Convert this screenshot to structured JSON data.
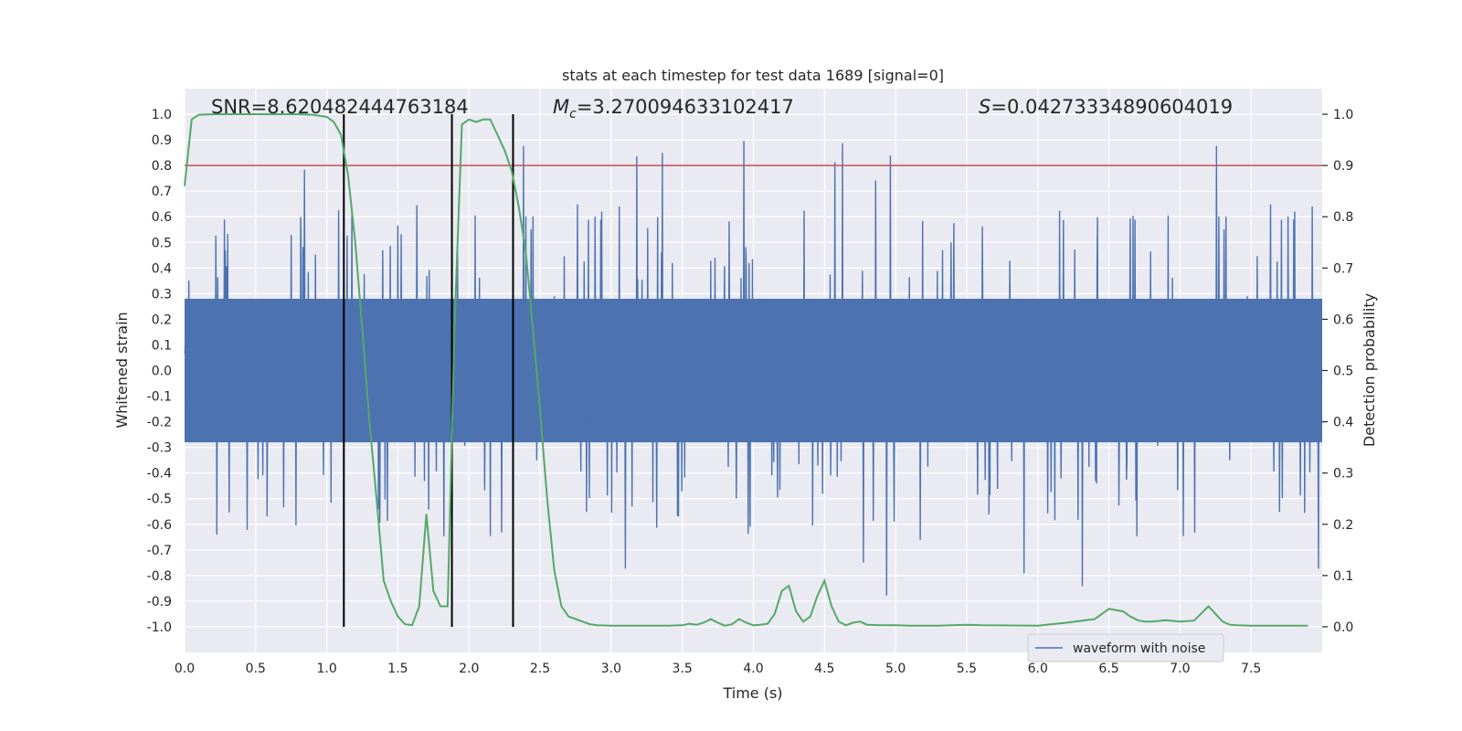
{
  "chart_data": {
    "type": "line",
    "title": "stats at each timestep for test data 1689 [signal=0]",
    "xlabel": "Time (s)",
    "ylabel_left": "Whitened strain",
    "ylabel_right": "Detection probability",
    "xlim": [
      0,
      8
    ],
    "ylim_left": [
      -1.1,
      1.1
    ],
    "ylim_right": [
      -0.05,
      1.05
    ],
    "x_ticks": [
      "0.0",
      "0.5",
      "1.0",
      "1.5",
      "2.0",
      "2.5",
      "3.0",
      "3.5",
      "4.0",
      "4.5",
      "5.0",
      "5.5",
      "6.0",
      "6.5",
      "7.0",
      "7.5"
    ],
    "x_tick_values": [
      0,
      0.5,
      1,
      1.5,
      2,
      2.5,
      3,
      3.5,
      4,
      4.5,
      5,
      5.5,
      6,
      6.5,
      7,
      7.5
    ],
    "y_left_ticks": [
      "1.0",
      "0.9",
      "0.8",
      "0.7",
      "0.6",
      "0.5",
      "0.4",
      "0.3",
      "0.2",
      "0.1",
      "0.0",
      "-0.1",
      "-0.2",
      "-0.3",
      "-0.4",
      "-0.5",
      "-0.6",
      "-0.7",
      "-0.8",
      "-0.9",
      "-1.0"
    ],
    "y_left_tick_values": [
      1.0,
      0.9,
      0.8,
      0.7,
      0.6,
      0.5,
      0.4,
      0.3,
      0.2,
      0.1,
      0.0,
      -0.1,
      -0.2,
      -0.3,
      -0.4,
      -0.5,
      -0.6,
      -0.7,
      -0.8,
      -0.9,
      -1.0
    ],
    "y_right_ticks": [
      "1.0",
      "0.9",
      "0.8",
      "0.7",
      "0.6",
      "0.5",
      "0.4",
      "0.3",
      "0.2",
      "0.1",
      "0.0"
    ],
    "y_right_tick_values": [
      1.0,
      0.9,
      0.8,
      0.7,
      0.6,
      0.5,
      0.4,
      0.3,
      0.2,
      0.1,
      0.0
    ],
    "annotations": {
      "snr": "SNR=8.620482444763184",
      "mc_symbol": "M",
      "mc_sub": "c",
      "mc_value": "=3.270094633102417",
      "s_symbol": "S",
      "s_value": "=0.04273334890604019"
    },
    "threshold": {
      "value": 0.9,
      "axis": "right",
      "color": "#c44e52"
    },
    "vertical_lines": [
      1.12,
      1.88,
      2.31
    ],
    "vertical_lines_ylim_left": [
      -1.0,
      1.0
    ],
    "legend": {
      "label": "waveform with noise",
      "placement": "lower-right"
    },
    "grid": true,
    "colors": {
      "waveform": "#4c72b0",
      "probability": "#55a868",
      "threshold": "#c44e52",
      "vlines": "#000000",
      "axes_bg": "#eaeaf2",
      "grid": "#ffffff"
    },
    "waveform": {
      "name": "waveform with noise",
      "axis": "left",
      "duration": 8.0,
      "core_amplitude": 0.28,
      "max_positive": 0.97,
      "min_negative": -1.0
    },
    "series": [
      {
        "name": "",
        "axis": "right",
        "x": [
          0.0,
          0.05,
          0.1,
          0.2,
          0.4,
          0.6,
          0.8,
          0.9,
          1.0,
          1.05,
          1.1,
          1.15,
          1.2,
          1.25,
          1.3,
          1.35,
          1.4,
          1.45,
          1.5,
          1.55,
          1.6,
          1.65,
          1.7,
          1.75,
          1.8,
          1.85,
          1.9,
          1.95,
          2.0,
          2.05,
          2.1,
          2.15,
          2.2,
          2.25,
          2.3,
          2.35,
          2.4,
          2.45,
          2.5,
          2.55,
          2.6,
          2.65,
          2.7,
          2.75,
          2.8,
          2.85,
          2.9,
          3.0,
          3.1,
          3.2,
          3.3,
          3.4,
          3.5,
          3.55,
          3.6,
          3.65,
          3.7,
          3.75,
          3.8,
          3.85,
          3.9,
          3.95,
          4.0,
          4.05,
          4.1,
          4.15,
          4.2,
          4.25,
          4.3,
          4.35,
          4.4,
          4.45,
          4.5,
          4.55,
          4.6,
          4.65,
          4.7,
          4.75,
          4.8,
          4.9,
          5.0,
          5.1,
          5.2,
          5.3,
          5.4,
          5.5,
          5.6,
          6.0,
          6.2,
          6.4,
          6.5,
          6.6,
          6.65,
          6.7,
          6.75,
          6.8,
          6.9,
          7.0,
          7.1,
          7.2,
          7.3,
          7.35,
          7.4,
          7.5,
          7.6,
          7.7,
          7.9
        ],
        "values": [
          0.86,
          0.99,
          0.999,
          1.0,
          1.0,
          1.0,
          1.0,
          0.999,
          0.995,
          0.985,
          0.96,
          0.88,
          0.75,
          0.58,
          0.4,
          0.25,
          0.09,
          0.05,
          0.02,
          0.005,
          0.003,
          0.04,
          0.22,
          0.07,
          0.04,
          0.04,
          0.6,
          0.98,
          0.99,
          0.985,
          0.99,
          0.99,
          0.96,
          0.93,
          0.89,
          0.82,
          0.73,
          0.58,
          0.42,
          0.25,
          0.11,
          0.04,
          0.02,
          0.015,
          0.01,
          0.005,
          0.003,
          0.002,
          0.002,
          0.002,
          0.002,
          0.002,
          0.003,
          0.006,
          0.004,
          0.008,
          0.015,
          0.008,
          0.002,
          0.005,
          0.015,
          0.008,
          0.003,
          0.004,
          0.006,
          0.025,
          0.07,
          0.08,
          0.03,
          0.01,
          0.02,
          0.06,
          0.09,
          0.04,
          0.01,
          0.003,
          0.008,
          0.01,
          0.004,
          0.003,
          0.003,
          0.002,
          0.002,
          0.002,
          0.003,
          0.004,
          0.003,
          0.002,
          0.008,
          0.015,
          0.035,
          0.03,
          0.02,
          0.013,
          0.01,
          0.01,
          0.013,
          0.01,
          0.012,
          0.04,
          0.01,
          0.004,
          0.003,
          0.002,
          0.002,
          0.002,
          0.002
        ]
      }
    ]
  }
}
